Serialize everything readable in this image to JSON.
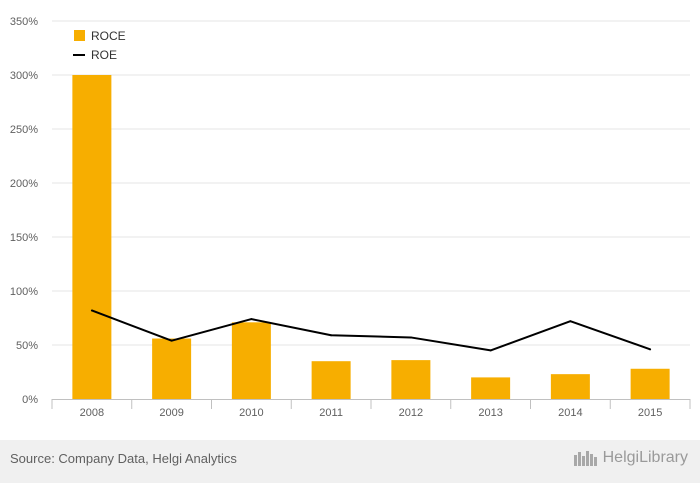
{
  "chart_data": {
    "type": "bar",
    "categories": [
      "2008",
      "2009",
      "2010",
      "2011",
      "2012",
      "2013",
      "2014",
      "2015"
    ],
    "series": [
      {
        "name": "ROCE",
        "kind": "bar",
        "color": "#f7ae00",
        "values": [
          300,
          56,
          71,
          35,
          36,
          20,
          23,
          28
        ]
      },
      {
        "name": "ROE",
        "kind": "line",
        "color": "#000000",
        "values": [
          82,
          54,
          74,
          59,
          57,
          45,
          72,
          46
        ]
      }
    ],
    "ylim": [
      0,
      350
    ],
    "yticks": [
      "0%",
      "50%",
      "100%",
      "150%",
      "200%",
      "250%",
      "300%",
      "350%"
    ],
    "grid": true,
    "legend_position": "top-left"
  },
  "footer": {
    "source": "Source: Company Data, Helgi Analytics",
    "brand": "HelgiLibrary"
  }
}
